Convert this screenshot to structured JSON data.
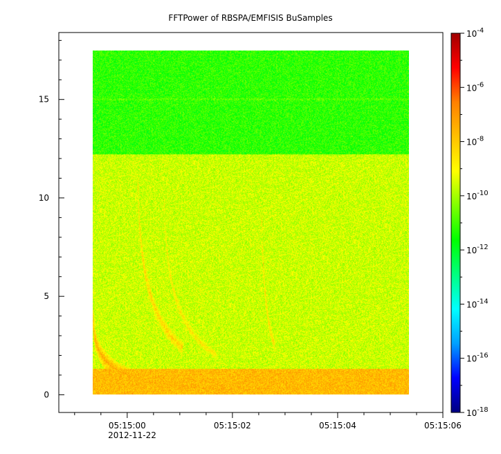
{
  "chart_data": {
    "type": "heatmap",
    "title": "FFTPower of RBSPA/EMFISIS  BuSamples",
    "xlabel": "",
    "ylabel": "",
    "x_tick_labels": [
      "05:15:00",
      "05:15:02",
      "05:15:04",
      "05:15:06"
    ],
    "x_tick_values_s": [
      0,
      2,
      4,
      6
    ],
    "x_date_label": "2012-11-22",
    "xlim_s": [
      -1.3,
      6.0
    ],
    "data_time_range_s": [
      -0.65,
      5.35
    ],
    "y_ticks": [
      0,
      5,
      10,
      15
    ],
    "ylim": [
      -0.9,
      18.4
    ],
    "data_y_range": [
      0,
      17.5
    ],
    "colorbar": {
      "scale": "log",
      "range": [
        1e-18,
        0.0001
      ],
      "tick_exponents": [
        -18,
        -16,
        -14,
        -12,
        -10,
        -8,
        -6,
        -4
      ],
      "tick_base": "10",
      "colormap": [
        "#000080",
        "#0000ff",
        "#00a0ff",
        "#00ffff",
        "#00ff80",
        "#00ff00",
        "#80ff00",
        "#ffff00",
        "#ffc000",
        "#ff8000",
        "#ff0000",
        "#a00000"
      ]
    },
    "background_levels": [
      {
        "y_range": [
          0,
          1.3
        ],
        "log_power": -7.7
      },
      {
        "y_range": [
          1.3,
          12.2
        ],
        "log_power": -9.6
      },
      {
        "y_range": [
          12.2,
          17.5
        ],
        "log_power": -11.2
      }
    ],
    "line_features": [
      {
        "y": 15,
        "log_power": -10.8
      }
    ],
    "curved_features": [
      {
        "t_start_s": -0.65,
        "t_end_s": 2.0,
        "y_start": 4.0,
        "y_end": 0.25,
        "log_power": -7.4
      },
      {
        "t_start_s": 0.2,
        "t_end_s": 1.05,
        "y_start": 12.0,
        "y_end": 2.4,
        "log_power": -8.2
      },
      {
        "t_start_s": 0.7,
        "t_end_s": 1.7,
        "y_start": 11.0,
        "y_end": 2.0,
        "log_power": -8.6
      },
      {
        "t_start_s": 2.55,
        "t_end_s": 2.8,
        "y_start": 12.0,
        "y_end": 2.5,
        "log_power": -8.3
      }
    ]
  }
}
